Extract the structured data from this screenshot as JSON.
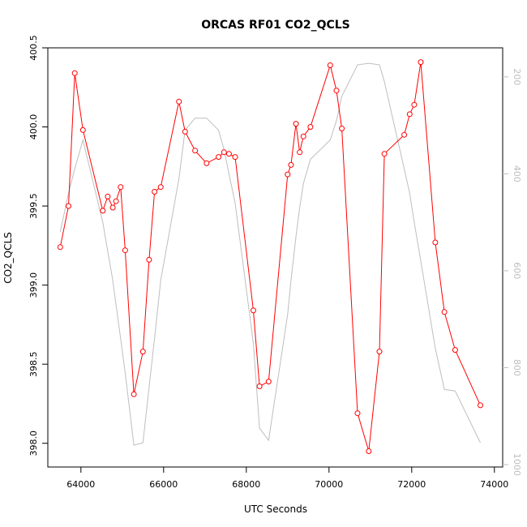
{
  "chart_data": {
    "type": "line",
    "title": "ORCAS RF01 CO2_QCLS",
    "xlabel": "UTC Seconds",
    "ylabel": "CO2_QCLS",
    "xlim": [
      63200,
      74200
    ],
    "ylim": [
      397.85,
      400.5
    ],
    "y2lim": [
      1005,
      140
    ],
    "x_ticks": [
      64000,
      66000,
      68000,
      70000,
      72000,
      74000
    ],
    "x_tick_labels": [
      "64000",
      "66000",
      "68000",
      "70000",
      "72000",
      "74000"
    ],
    "y_ticks": [
      398.0,
      398.5,
      399.0,
      399.5,
      400.0,
      400.5
    ],
    "y_tick_labels": [
      "398.0",
      "398.5",
      "399.0",
      "399.5",
      "400.0",
      "400.5"
    ],
    "y2_ticks": [
      200,
      400,
      600,
      800,
      1000
    ],
    "y2_tick_labels": [
      "200",
      "400",
      "600",
      "800",
      "1000"
    ],
    "grid": false,
    "colors": {
      "co2": "#ff0000",
      "pressure": "#bebebe"
    },
    "series": [
      {
        "axis": "left",
        "style": "line-points",
        "x": [
          63500,
          63700,
          63850,
          64050,
          64530,
          64650,
          64770,
          64850,
          64960,
          65070,
          65280,
          65500,
          65650,
          65780,
          65930,
          66370,
          66520,
          66760,
          67040,
          67330,
          67460,
          67580,
          67730,
          68170,
          68320,
          68540,
          69000,
          69080,
          69200,
          69290,
          69380,
          69550,
          70030,
          70180,
          70310,
          70690,
          70960,
          71220,
          71340,
          71820,
          71950,
          72060,
          72220,
          72570,
          72790,
          73050,
          73660
        ],
        "y": [
          399.24,
          399.5,
          400.34,
          399.98,
          399.47,
          399.56,
          399.49,
          399.53,
          399.62,
          399.22,
          398.31,
          398.58,
          399.16,
          399.59,
          399.62,
          400.16,
          399.97,
          399.85,
          399.77,
          399.81,
          399.84,
          399.83,
          399.81,
          398.84,
          398.36,
          398.39,
          399.7,
          399.76,
          400.02,
          399.84,
          399.94,
          400.0,
          400.39,
          400.23,
          399.99,
          398.19,
          397.95,
          398.58,
          399.83,
          399.95,
          400.08,
          400.14,
          400.41,
          399.27,
          398.83,
          398.59,
          398.24
        ]
      },
      {
        "axis": "right",
        "style": "line",
        "x": [
          63500,
          63700,
          63850,
          64050,
          64530,
          64650,
          64770,
          64850,
          64960,
          65070,
          65280,
          65500,
          65650,
          65780,
          65930,
          66370,
          66520,
          66760,
          67040,
          67330,
          67460,
          67580,
          67730,
          68170,
          68320,
          68540,
          69000,
          69080,
          69200,
          69290,
          69380,
          69550,
          70030,
          70180,
          70310,
          70690,
          70960,
          71220,
          71340,
          71820,
          71950,
          72060,
          72220,
          72570,
          72790,
          73050,
          73660
        ],
        "y": [
          520,
          440,
          390,
          330,
          500,
          560,
          620,
          670,
          740,
          810,
          960,
          955,
          840,
          740,
          620,
          410,
          310,
          285,
          285,
          310,
          350,
          400,
          460,
          750,
          925,
          950,
          690,
          620,
          530,
          470,
          420,
          370,
          330,
          290,
          240,
          175,
          172,
          175,
          210,
          390,
          440,
          500,
          580,
          760,
          845,
          848,
          955
        ]
      }
    ]
  }
}
